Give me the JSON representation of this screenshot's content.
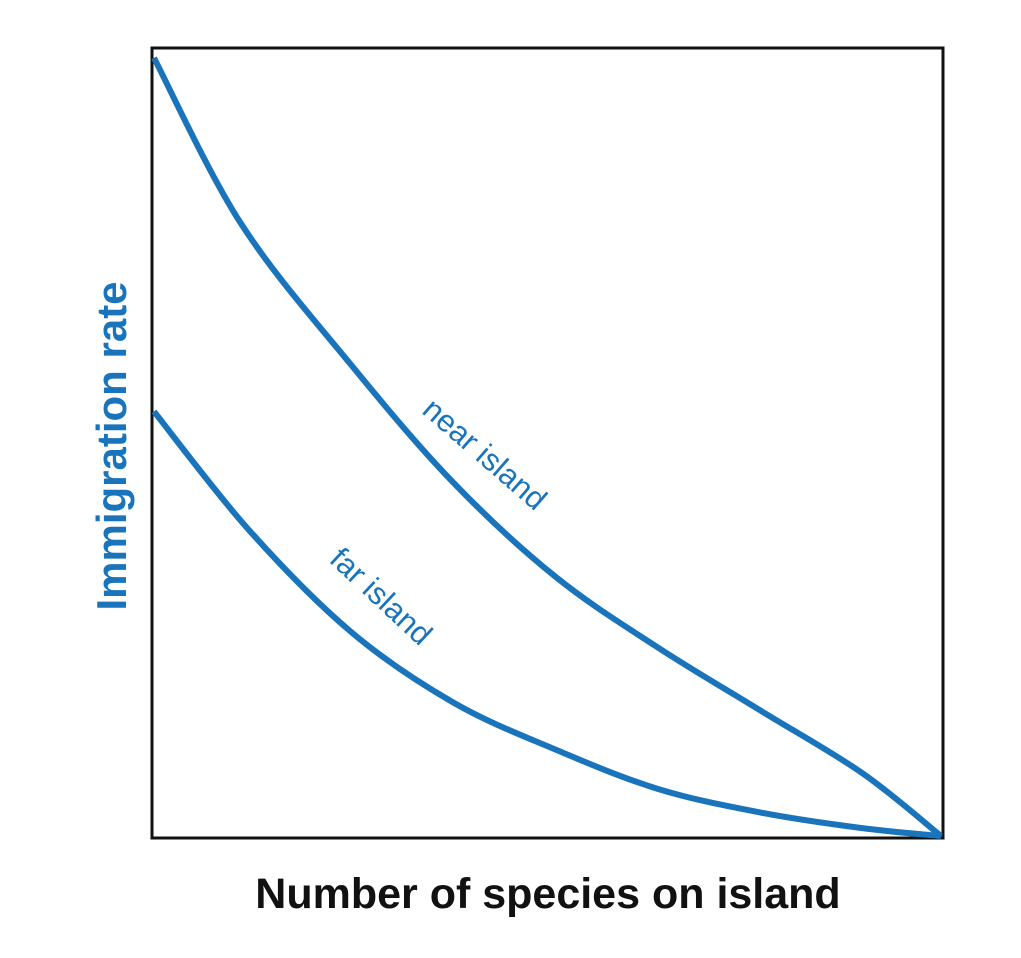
{
  "chart_data": {
    "type": "line",
    "title": "",
    "xlabel": "Number of species on island",
    "ylabel": "Immigration rate",
    "xlim": [
      0,
      1
    ],
    "ylim": [
      0,
      1
    ],
    "grid": false,
    "legend": "none",
    "line_color": "#1a74bb",
    "series": [
      {
        "name": "near island",
        "x": [
          0,
          0.11,
          0.25,
          0.38,
          0.51,
          0.64,
          0.77,
          0.9,
          1.0
        ],
        "y": [
          0.99,
          0.78,
          0.6,
          0.45,
          0.33,
          0.24,
          0.16,
          0.08,
          0.0
        ]
      },
      {
        "name": "far island",
        "x": [
          0,
          0.12,
          0.25,
          0.38,
          0.51,
          0.64,
          0.77,
          0.9,
          1.0
        ],
        "y": [
          0.54,
          0.39,
          0.26,
          0.17,
          0.11,
          0.06,
          0.03,
          0.01,
          0.0
        ]
      }
    ]
  }
}
